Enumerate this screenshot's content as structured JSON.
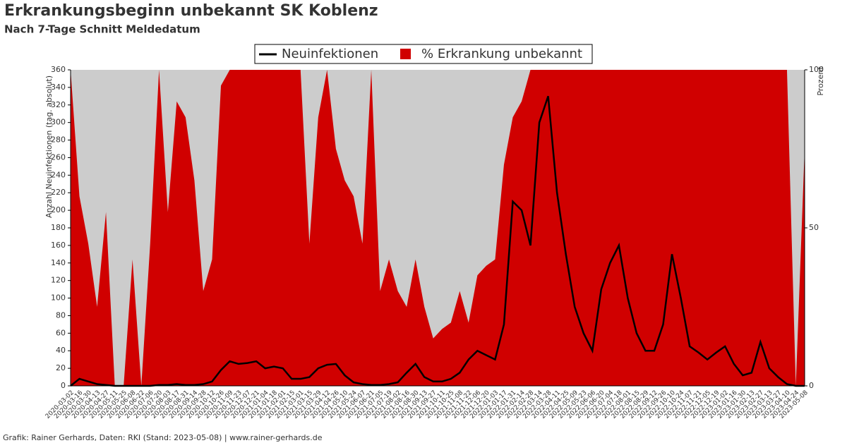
{
  "chart_data": {
    "type": "line-area",
    "title": "Erkrankungsbeginn unbekannt SK Koblenz",
    "subtitle": "Nach 7-Tage Schnitt Meldedatum",
    "footer": "Grafik: Rainer Gerhards, Daten: RKI (Stand: 2023-05-08) | www.rainer-gerhards.de",
    "ylabel": "Anzahl Neuinfektionen (tag. absolut)",
    "y2label": "Prozent",
    "x": [
      "2020-03-02",
      "2020-03-16",
      "2020-03-30",
      "2020-04-13",
      "2020-04-27",
      "2020-05-11",
      "2020-05-25",
      "2020-06-08",
      "2020-06-22",
      "2020-07-06",
      "2020-07-20",
      "2020-08-03",
      "2020-08-17",
      "2020-08-31",
      "2020-09-14",
      "2020-09-28",
      "2020-10-12",
      "2020-10-26",
      "2020-11-09",
      "2020-11-23",
      "2020-12-07",
      "2020-12-21",
      "2021-01-04",
      "2021-01-18",
      "2021-02-01",
      "2021-02-15",
      "2021-03-01",
      "2021-03-15",
      "2021-03-29",
      "2021-04-12",
      "2021-04-26",
      "2021-05-10",
      "2021-05-24",
      "2021-06-07",
      "2021-06-21",
      "2021-07-05",
      "2021-07-19",
      "2021-08-02",
      "2021-08-16",
      "2021-08-30",
      "2021-09-13",
      "2021-09-27",
      "2021-10-11",
      "2021-10-25",
      "2021-11-08",
      "2021-11-22",
      "2021-12-06",
      "2021-12-20",
      "2022-01-03",
      "2022-01-17",
      "2022-01-31",
      "2022-02-14",
      "2022-02-28",
      "2022-03-14",
      "2022-03-28",
      "2022-04-11",
      "2022-04-25",
      "2022-05-09",
      "2022-05-23",
      "2022-06-06",
      "2022-06-20",
      "2022-07-04",
      "2022-07-18",
      "2022-08-01",
      "2022-08-15",
      "2022-08-29",
      "2022-09-12",
      "2022-09-26",
      "2022-10-10",
      "2022-10-24",
      "2022-11-07",
      "2022-11-21",
      "2022-12-05",
      "2022-12-19",
      "2023-01-02",
      "2023-01-16",
      "2023-01-30",
      "2023-02-13",
      "2023-02-27",
      "2023-03-13",
      "2023-03-27",
      "2023-04-10",
      "2023-04-24",
      "2023-05-08"
    ],
    "series": [
      {
        "name": "% Erkrankung unbekannt",
        "color": "#d00000",
        "axis": "y2",
        "values": [
          100,
          60,
          45,
          25,
          55,
          0,
          0,
          40,
          0,
          45,
          100,
          55,
          90,
          85,
          65,
          30,
          40,
          95,
          100,
          100,
          100,
          100,
          100,
          100,
          100,
          100,
          100,
          45,
          85,
          100,
          75,
          65,
          60,
          45,
          100,
          30,
          40,
          30,
          25,
          40,
          25,
          15,
          18,
          20,
          30,
          20,
          35,
          38,
          40,
          70,
          85,
          90,
          100,
          100,
          100,
          100,
          100,
          100,
          100,
          100,
          100,
          100,
          100,
          100,
          100,
          100,
          100,
          100,
          100,
          100,
          100,
          100,
          100,
          100,
          100,
          100,
          100,
          100,
          100,
          100,
          100,
          100,
          0,
          75
        ]
      },
      {
        "name": "Neuinfektionen",
        "color": "#000000",
        "values": [
          0,
          8,
          5,
          2,
          1,
          0,
          0,
          0,
          0,
          0,
          1,
          1,
          2,
          1,
          1,
          2,
          5,
          18,
          28,
          25,
          26,
          28,
          20,
          22,
          20,
          8,
          8,
          10,
          20,
          24,
          25,
          12,
          4,
          2,
          1,
          1,
          2,
          4,
          15,
          25,
          10,
          5,
          5,
          8,
          15,
          30,
          40,
          35,
          30,
          70,
          210,
          200,
          160,
          300,
          330,
          220,
          150,
          90,
          60,
          40,
          110,
          140,
          160,
          100,
          60,
          40,
          40,
          70,
          150,
          100,
          45,
          38,
          30,
          38,
          45,
          25,
          12,
          15,
          50,
          20,
          10,
          2,
          0,
          0
        ]
      }
    ],
    "ylim": [
      0,
      360
    ],
    "yticks": [
      0,
      20,
      40,
      60,
      80,
      100,
      120,
      140,
      160,
      180,
      200,
      220,
      240,
      260,
      280,
      300,
      320,
      340,
      360
    ],
    "y2lim": [
      0,
      100
    ],
    "y2ticks": [
      0,
      50,
      100
    ],
    "background": "#cccccc"
  }
}
